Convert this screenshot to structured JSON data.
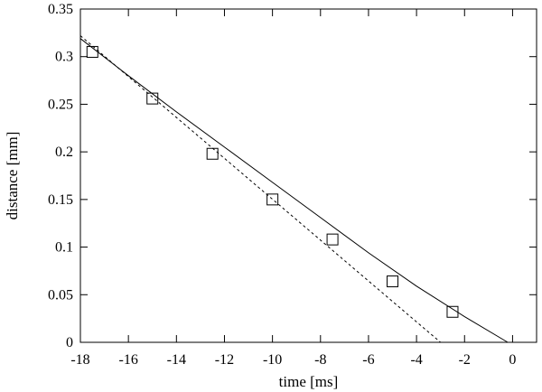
{
  "chart_data": {
    "type": "scatter",
    "xlabel": "time [ms]",
    "ylabel": "distance [mm]",
    "xlim": [
      -18,
      1
    ],
    "ylim": [
      0,
      0.35
    ],
    "xticks": [
      -18,
      -16,
      -14,
      -12,
      -10,
      -8,
      -6,
      -4,
      -2,
      0
    ],
    "xtick_labels": [
      "-18",
      "-16",
      "-14",
      "-12",
      "-10",
      "-8",
      "-6",
      "-4",
      "-2",
      "0"
    ],
    "yticks": [
      0,
      0.05,
      0.1,
      0.15,
      0.2,
      0.25,
      0.3,
      0.35
    ],
    "ytick_labels": [
      "0",
      "0.05",
      "0.1",
      "0.15",
      "0.2",
      "0.25",
      "0.3",
      "0.35"
    ],
    "grid": false,
    "legend": "none",
    "series": [
      {
        "kind": "points",
        "marker": "open-square",
        "color": "#000000",
        "x": [
          -17.5,
          -15.0,
          -12.5,
          -10.0,
          -7.5,
          -5.0,
          -2.5
        ],
        "y": [
          0.305,
          0.256,
          0.198,
          0.15,
          0.108,
          0.064,
          0.032
        ]
      },
      {
        "kind": "line",
        "style": "solid",
        "color": "#000000",
        "x": [
          -18.0,
          -16.0,
          -14.0,
          -12.0,
          -10.0,
          -8.0,
          -6.0,
          -4.0,
          -2.0,
          -0.2
        ],
        "y": [
          0.319,
          0.28,
          0.242,
          0.205,
          0.168,
          0.131,
          0.094,
          0.059,
          0.027,
          0.0
        ]
      },
      {
        "kind": "line",
        "style": "dashed",
        "color": "#000000",
        "x": [
          -18.0,
          -3.0
        ],
        "y": [
          0.322,
          0.0
        ]
      }
    ]
  }
}
